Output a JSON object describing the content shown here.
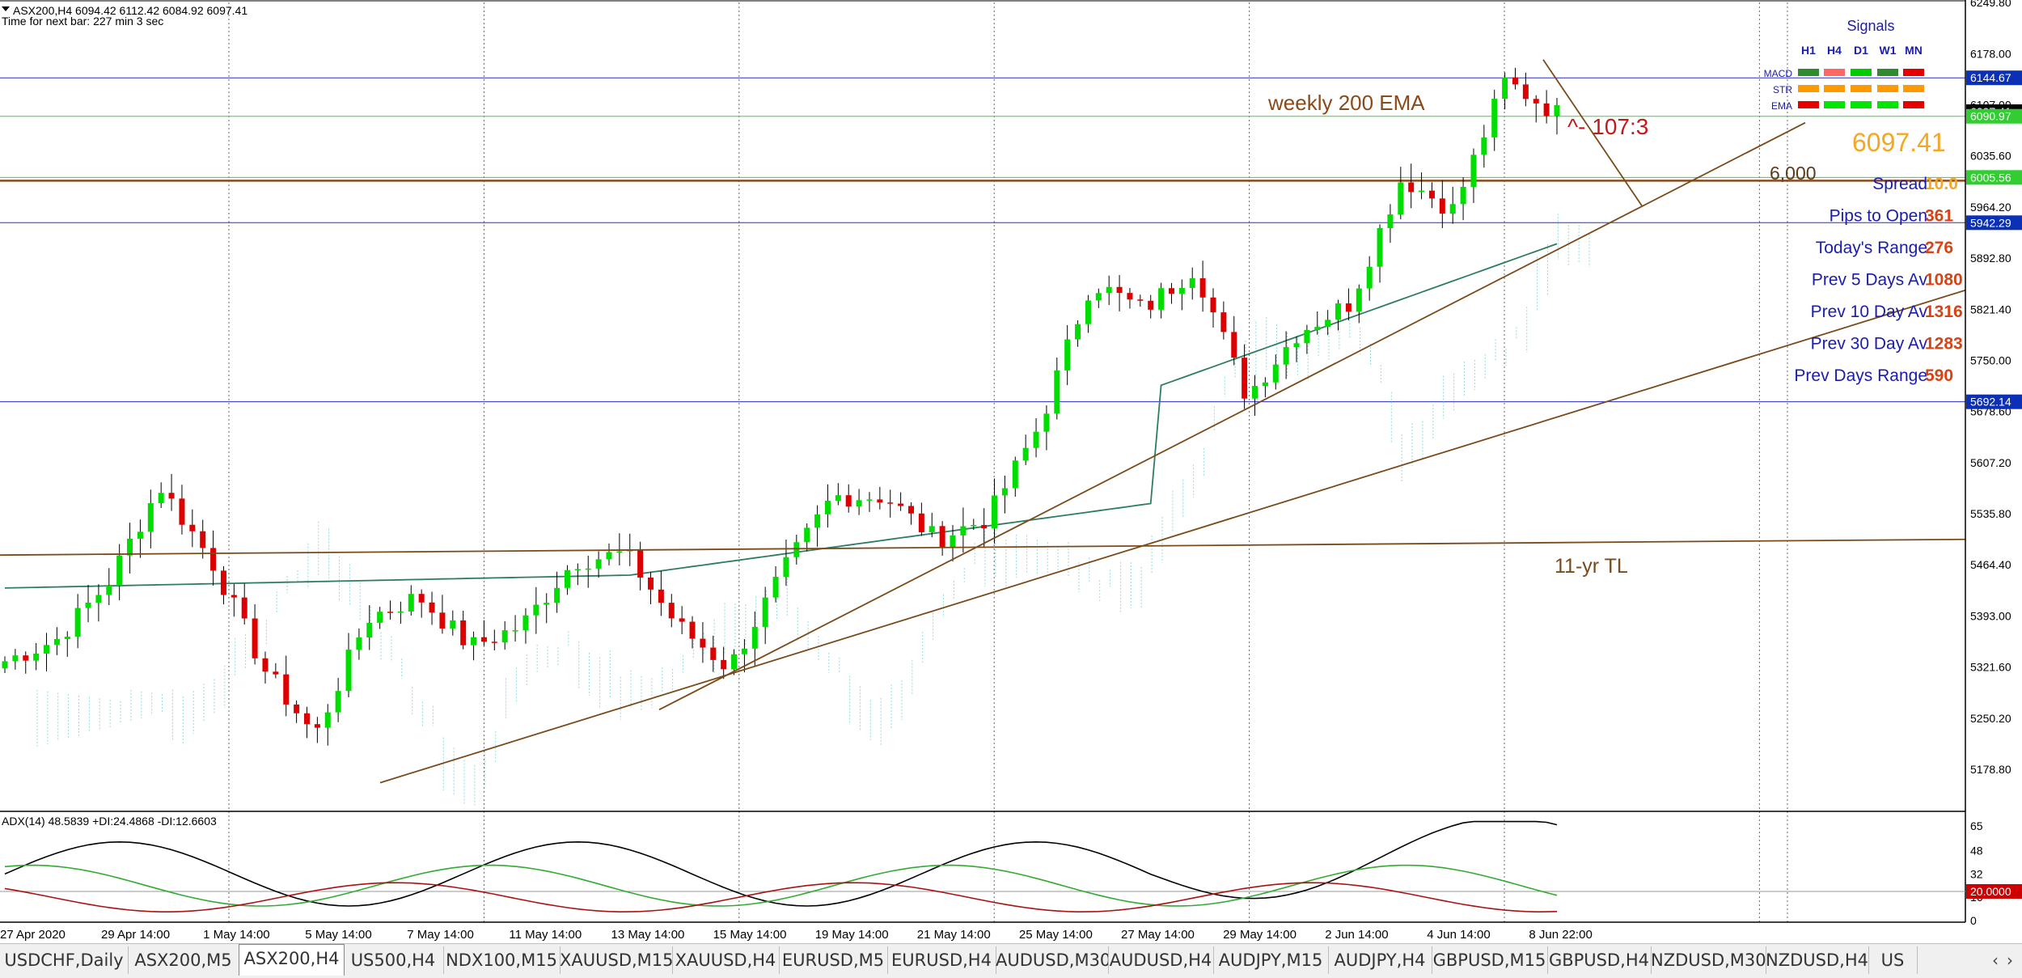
{
  "header": {
    "symbol_line": "ASX200,H4  6094.42 6112.42 6084.92 6097.41",
    "timer_line": "Time for next bar: 227 min 3 sec"
  },
  "price_axis": {
    "ticks": [
      "6249.80",
      "6178.00",
      "6107.00",
      "6035.60",
      "5964.20",
      "5892.80",
      "5821.40",
      "5750.00",
      "5678.60",
      "5607.20",
      "5535.80",
      "5464.40",
      "5393.00",
      "5321.60",
      "5250.20",
      "5178.80"
    ],
    "tags": [
      {
        "label": "6144.67",
        "color": "#0b30b5"
      },
      {
        "label": "6097.41",
        "color": "#000000"
      },
      {
        "label": "6090.97",
        "color": "#33cc33"
      },
      {
        "label": "6005.56",
        "color": "#33cc33"
      },
      {
        "label": "5942.29",
        "color": "#0b30b5"
      },
      {
        "label": "5692.14",
        "color": "#0b30b5"
      }
    ]
  },
  "time_axis": [
    "27 Apr 2020",
    "29 Apr 14:00",
    "1 May 14:00",
    "5 May 14:00",
    "7 May 14:00",
    "11 May 14:00",
    "13 May 14:00",
    "15 May 14:00",
    "19 May 14:00",
    "21 May 14:00",
    "25 May 14:00",
    "27 May 14:00",
    "29 May 14:00",
    "2 Jun 14:00",
    "4 Jun 14:00",
    "8 Jun 22:00"
  ],
  "annotations": {
    "weekly_ema": "weekly 200 EMA",
    "six_thousand": "6,000",
    "eleven_yr": "11-yr TL",
    "target": "^- 107:3",
    "big_price": "6097.41"
  },
  "signals": {
    "title": "Signals",
    "timeframes": [
      "H1",
      "H4",
      "D1",
      "W1",
      "MN"
    ],
    "rows": [
      {
        "label": "MACD",
        "colors": [
          "#2e8b2e",
          "#ff6666",
          "#00cc00",
          "#2e8b2e",
          "#e60000"
        ]
      },
      {
        "label": "STR",
        "colors": [
          "#ff9900",
          "#ff9900",
          "#ff9900",
          "#ff9900",
          "#ff9900"
        ]
      },
      {
        "label": "EMA",
        "colors": [
          "#e60000",
          "#00e600",
          "#00e600",
          "#00e600",
          "#e60000"
        ]
      }
    ]
  },
  "stats": [
    {
      "label": "Spread",
      "value": "10.0"
    },
    {
      "label": "Pips to Open",
      "value": "361"
    },
    {
      "label": "Today's Range",
      "value": "276"
    },
    {
      "label": "Prev 5 Days Av",
      "value": "1080"
    },
    {
      "label": "Prev 10 Day Av",
      "value": "1316"
    },
    {
      "label": "Prev 30 Day Av",
      "value": "1283"
    },
    {
      "label": "Prev Days Range",
      "value": "590"
    }
  ],
  "adx": {
    "label": "ADX(14) 48.5839 +DI:24.4868 -DI:12.6603",
    "ticks": [
      "65",
      "48",
      "32",
      "16",
      "0"
    ],
    "level_tag": "20.0000"
  },
  "tabs": {
    "items": [
      "USDCHF,Daily",
      "ASX200,M5",
      "ASX200,H4",
      "US500,H4",
      "NDX100,M15",
      "XAUUSD,M15",
      "XAUUSD,H4",
      "EURUSD,M5",
      "EURUSD,H4",
      "AUDUSD,M30",
      "AUDUSD,H4",
      "AUDJPY,M15",
      "AUDJPY,H4",
      "GBPUSD,M15",
      "GBPUSD,H4",
      "NZDUSD,M30",
      "NZDUSD,H4",
      "US"
    ],
    "active": 2,
    "prev_icon": "‹",
    "next_icon": "›"
  },
  "chart_data": {
    "type": "candlestick",
    "title": "ASX200,H4",
    "ylim": [
      5120,
      6250
    ],
    "x": [
      "27 Apr 2020",
      "29 Apr 14:00",
      "1 May 14:00",
      "5 May 14:00",
      "7 May 14:00",
      "11 May 14:00",
      "13 May 14:00",
      "15 May 14:00",
      "19 May 14:00",
      "21 May 14:00",
      "25 May 14:00",
      "27 May 14:00",
      "29 May 14:00",
      "2 Jun 14:00",
      "4 Jun 14:00",
      "8 Jun 22:00"
    ],
    "close_waypoints": [
      5330,
      5360,
      5440,
      5575,
      5470,
      5320,
      5225,
      5390,
      5420,
      5350,
      5380,
      5470,
      5480,
      5380,
      5320,
      5450,
      5560,
      5560,
      5500,
      5530,
      5660,
      5860,
      5820,
      5880,
      5700,
      5790,
      5830,
      6005,
      5960,
      6140,
      6095
    ],
    "ema_200_weekly_level": 6001,
    "eleven_year_trendline": [
      5478,
      5500
    ],
    "horizontal_levels": [
      6144.67,
      6097.41,
      6090.97,
      6005.56,
      5942.29,
      5692.14
    ],
    "adx": {
      "ylim": [
        0,
        70
      ],
      "level": 20,
      "series": [
        "ADX",
        "+DI",
        "-DI"
      ],
      "last": [
        48.5839,
        24.4868,
        12.6603
      ]
    }
  }
}
